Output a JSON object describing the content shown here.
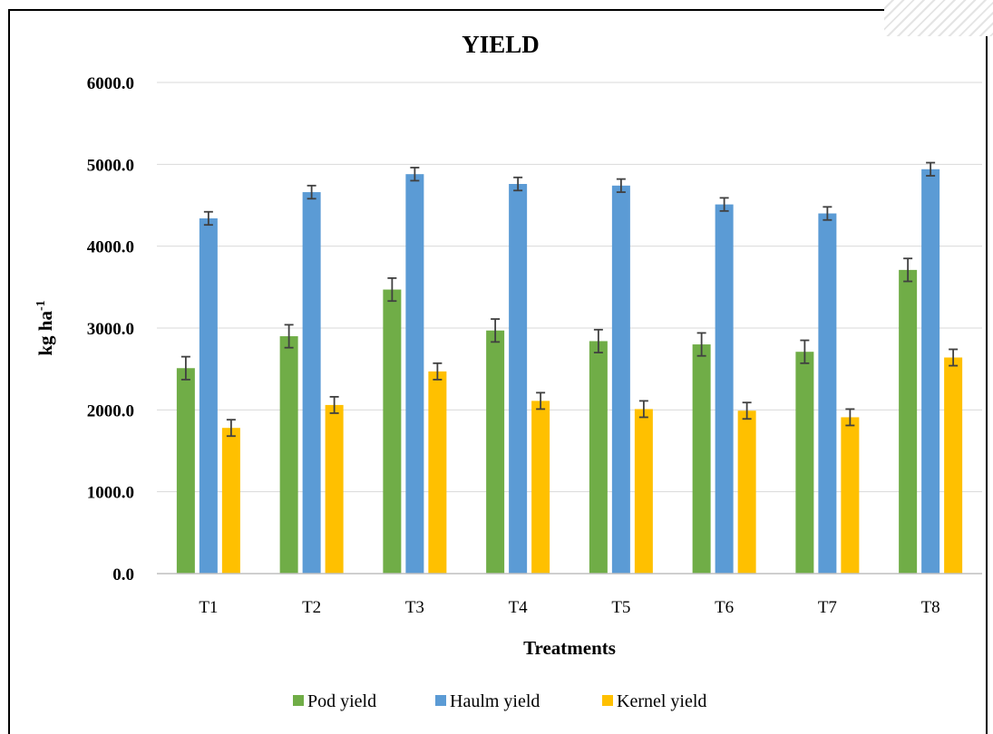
{
  "chart_data": {
    "type": "bar",
    "title": "YIELD",
    "xlabel": "Treatments",
    "ylabel": "kg ha",
    "ylabel_superscript": "-1",
    "ylim": [
      0,
      6000
    ],
    "yticks": [
      "0.0",
      "1000.0",
      "2000.0",
      "3000.0",
      "4000.0",
      "5000.0",
      "6000.0"
    ],
    "grid": true,
    "legend_position": "bottom",
    "categories": [
      "T1",
      "T2",
      "T3",
      "T4",
      "T5",
      "T6",
      "T7",
      "T8"
    ],
    "series": [
      {
        "name": "Pod yield",
        "color": "#70ad47",
        "values": [
          2510,
          2900,
          3470,
          2970,
          2840,
          2800,
          2710,
          3710
        ],
        "errors": [
          140,
          140,
          140,
          140,
          140,
          140,
          140,
          140
        ]
      },
      {
        "name": "Haulm yield",
        "color": "#5b9bd5",
        "values": [
          4340,
          4660,
          4880,
          4760,
          4740,
          4510,
          4400,
          4940
        ],
        "errors": [
          80,
          80,
          80,
          80,
          80,
          80,
          80,
          80
        ]
      },
      {
        "name": "Kernel yield",
        "color": "#ffc000",
        "values": [
          1780,
          2060,
          2470,
          2110,
          2010,
          1990,
          1910,
          2640
        ],
        "errors": [
          100,
          100,
          100,
          100,
          100,
          100,
          100,
          100
        ]
      }
    ]
  }
}
